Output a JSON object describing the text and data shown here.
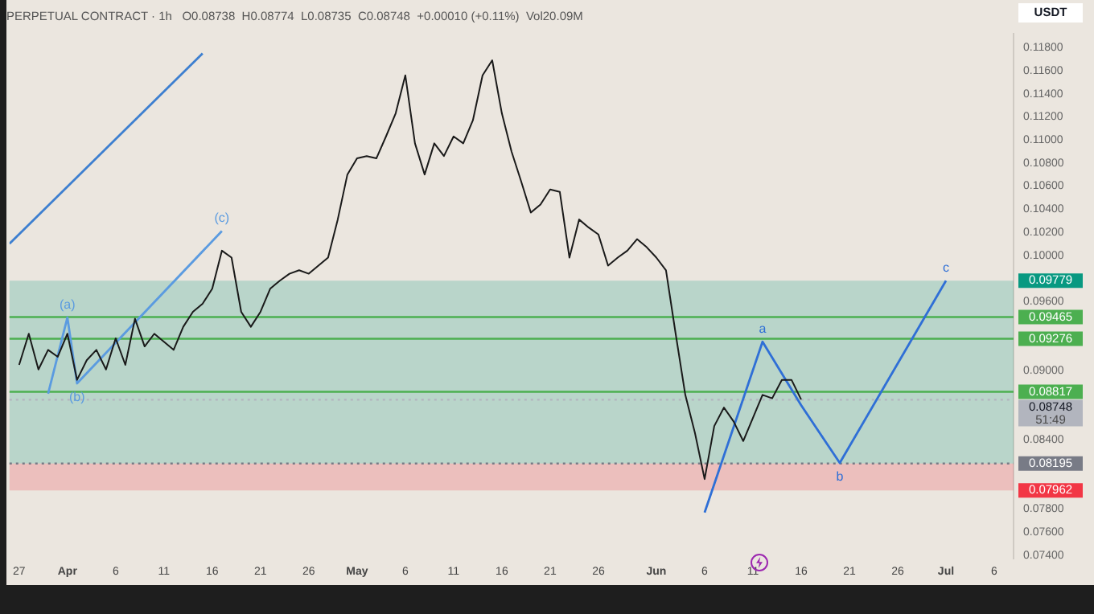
{
  "chart_data": {
    "type": "line",
    "title": "PERPETUAL CONTRACT · 1h   O0.08738  H0.08774  L0.08735  C0.08748  +0.00010 (+0.11%)  Vol20.09M",
    "ylabel": "USDT",
    "xlim": [
      "--03-26",
      "--07-08"
    ],
    "xticks": [
      {
        "value": "--03-27",
        "label": "27"
      },
      {
        "value": "--04-01",
        "label": "Apr"
      },
      {
        "value": "--04-06",
        "label": "6"
      },
      {
        "value": "--04-11",
        "label": "11"
      },
      {
        "value": "--04-16",
        "label": "16"
      },
      {
        "value": "--04-21",
        "label": "21"
      },
      {
        "value": "--04-26",
        "label": "26"
      },
      {
        "value": "--05-01",
        "label": "May"
      },
      {
        "value": "--05-06",
        "label": "6"
      },
      {
        "value": "--05-11",
        "label": "11"
      },
      {
        "value": "--05-16",
        "label": "16"
      },
      {
        "value": "--05-21",
        "label": "21"
      },
      {
        "value": "--05-26",
        "label": "26"
      },
      {
        "value": "--06-01",
        "label": "Jun"
      },
      {
        "value": "--06-06",
        "label": "6"
      },
      {
        "value": "--06-11",
        "label": "11"
      },
      {
        "value": "--06-16",
        "label": "16"
      },
      {
        "value": "--06-21",
        "label": "21"
      },
      {
        "value": "--06-26",
        "label": "26"
      },
      {
        "value": "--07-01",
        "label": "Jul"
      },
      {
        "value": "--07-06",
        "label": "6"
      }
    ],
    "ylim": [
      0.0737,
      0.1192
    ],
    "yticks": [
      {
        "value": 0.074,
        "label": "0.07400"
      },
      {
        "value": 0.076,
        "label": "0.07600"
      },
      {
        "value": 0.078,
        "label": "0.07800"
      },
      {
        "value": 0.084,
        "label": "0.08400"
      },
      {
        "value": 0.09,
        "label": "0.09000"
      },
      {
        "value": 0.096,
        "label": "0.09600"
      },
      {
        "value": 0.1,
        "label": "0.10000"
      },
      {
        "value": 0.102,
        "label": "0.10200"
      },
      {
        "value": 0.104,
        "label": "0.10400"
      },
      {
        "value": 0.106,
        "label": "0.10600"
      },
      {
        "value": 0.108,
        "label": "0.10800"
      },
      {
        "value": 0.11,
        "label": "0.11000"
      },
      {
        "value": 0.112,
        "label": "0.11200"
      },
      {
        "value": 0.114,
        "label": "0.11400"
      },
      {
        "value": 0.116,
        "label": "0.11600"
      },
      {
        "value": 0.118,
        "label": "0.11800"
      }
    ],
    "grid": false,
    "legend": false,
    "marker": "none",
    "line_style": "solid",
    "series": [
      {
        "color": "#1a1a1a",
        "x": [
          "--03-27",
          "--03-28",
          "--03-29",
          "--03-30",
          "--03-31",
          "--04-01",
          "--04-02",
          "--04-03",
          "--04-04",
          "--04-05",
          "--04-06",
          "--04-07",
          "--04-08",
          "--04-09",
          "--04-10",
          "--04-11",
          "--04-12",
          "--04-13",
          "--04-14",
          "--04-15",
          "--04-16",
          "--04-17",
          "--04-18",
          "--04-19",
          "--04-20",
          "--04-21",
          "--04-22",
          "--04-23",
          "--04-24",
          "--04-25",
          "--04-26",
          "--04-27",
          "--04-28",
          "--04-29",
          "--04-30",
          "--05-01",
          "--05-02",
          "--05-03",
          "--05-04",
          "--05-05",
          "--05-06",
          "--05-07",
          "--05-08",
          "--05-09",
          "--05-10",
          "--05-11",
          "--05-12",
          "--05-13",
          "--05-14",
          "--05-15",
          "--05-16",
          "--05-17",
          "--05-18",
          "--05-19",
          "--05-20",
          "--05-21",
          "--05-22",
          "--05-23",
          "--05-24",
          "--05-25",
          "--05-26",
          "--05-27",
          "--05-28",
          "--05-29",
          "--05-30",
          "--05-31",
          "--06-01",
          "--06-02",
          "--06-03",
          "--06-04",
          "--06-05",
          "--06-06",
          "--06-07",
          "--06-08",
          "--06-09",
          "--06-10",
          "--06-11",
          "--06-12",
          "--06-13",
          "--06-14",
          "--06-15",
          "--06-16"
        ],
        "values": [
          0.0905,
          0.0932,
          0.0901,
          0.0918,
          0.0912,
          0.0932,
          0.0892,
          0.0909,
          0.0918,
          0.0901,
          0.0928,
          0.0905,
          0.0945,
          0.0921,
          0.0932,
          0.0925,
          0.0918,
          0.0938,
          0.0951,
          0.0958,
          0.0971,
          0.1004,
          0.0998,
          0.0951,
          0.0938,
          0.0951,
          0.0971,
          0.0978,
          0.0984,
          0.0987,
          0.0984,
          0.0991,
          0.0998,
          0.1031,
          0.107,
          0.1084,
          0.1086,
          0.1084,
          0.1103,
          0.1123,
          0.1156,
          0.1097,
          0.107,
          0.1097,
          0.1086,
          0.1103,
          0.1097,
          0.1117,
          0.1156,
          0.1169,
          0.1123,
          0.109,
          0.1064,
          0.1037,
          0.1044,
          0.1057,
          0.1055,
          0.0998,
          0.1031,
          0.1024,
          0.1018,
          0.0991,
          0.0998,
          0.1004,
          0.1014,
          0.1007,
          0.0998,
          0.0987,
          0.0932,
          0.0879,
          0.0846,
          0.0806,
          0.0852,
          0.0868,
          0.0856,
          0.0839,
          0.0859,
          0.0879,
          0.0876,
          0.0892,
          0.0892,
          0.0875
        ]
      },
      {
        "color": "#3d7fd0",
        "x": [
          "--03-26",
          "--04-15"
        ],
        "values": [
          0.101,
          0.1175
        ]
      },
      {
        "color": "#5b9be0",
        "x": [
          "--03-30",
          "--04-01",
          "--04-02",
          "--04-17"
        ],
        "values": [
          0.088,
          0.0946,
          0.0889,
          0.1021
        ]
      },
      {
        "color": "#2f6fd6",
        "x": [
          "--06-06",
          "--06-12",
          "--06-16",
          "--06-20",
          "--07-01"
        ],
        "values": [
          0.0777,
          0.0925,
          0.087,
          0.082,
          0.0978
        ]
      }
    ],
    "ref_lines": [
      {
        "axis": "y",
        "value": 0.09465,
        "label": "0.09465",
        "color": "#4caf50",
        "line_style": "solid"
      },
      {
        "axis": "y",
        "value": 0.09276,
        "label": "0.09276",
        "color": "#4caf50",
        "line_style": "solid"
      },
      {
        "axis": "y",
        "value": 0.08817,
        "label": "0.08817",
        "color": "#4caf50",
        "line_style": "solid"
      },
      {
        "axis": "y",
        "value": 0.08195,
        "label": "0.08195",
        "color": "#787b86",
        "line_style": "dotted"
      },
      {
        "axis": "y",
        "value": 0.08748,
        "label": "0.08748",
        "color": "#b2b5be",
        "line_style": "dotted"
      }
    ],
    "bands": [
      {
        "axis": "y",
        "from": 0.08195,
        "to": 0.09779,
        "label": "0.09779",
        "color": "#089981"
      },
      {
        "axis": "y",
        "from": 0.08195,
        "to": 0.07962,
        "label": "0.07962",
        "color": "#f23645"
      }
    ],
    "annotations": [
      "51:49",
      {
        "text": "(a)",
        "x": "--04-01",
        "y": 0.0946
      },
      {
        "text": "(b)",
        "x": "--04-02",
        "y": 0.0889
      },
      {
        "text": "(c)",
        "x": "--04-17",
        "y": 0.1021
      },
      {
        "text": "a",
        "x": "--06-12",
        "y": 0.0925
      },
      {
        "text": "b",
        "x": "--06-20",
        "y": 0.082
      },
      {
        "text": "c",
        "x": "--07-01",
        "y": 0.0978
      }
    ]
  }
}
